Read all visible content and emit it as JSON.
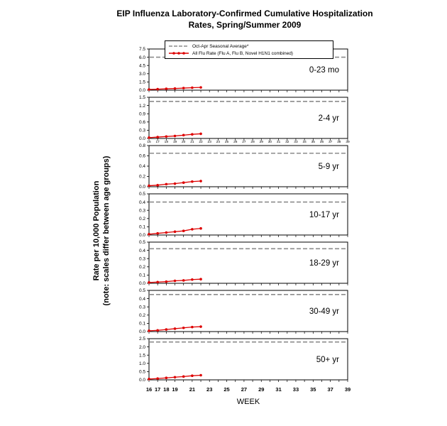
{
  "header": {
    "line1": "EIP Influenza Laboratory-Confirmed Cumulative Hospitalization",
    "line2": "Rates, Spring/Summer 2009"
  },
  "y_axis": {
    "label_line1": "Rate per 10,000 Population",
    "label_line2": "(note: scales differ between age groups)"
  },
  "x_axis": {
    "label": "WEEK"
  },
  "legend": {
    "items": [
      {
        "label": "Oct-Apr Seasonal Average*",
        "style": "dashed",
        "color": "#8c8c8c"
      },
      {
        "label": "All Flu Rate (Flu A, Flu B, Novel H1N1 combined)",
        "style": "marker-line",
        "color": "#dd0000"
      }
    ]
  },
  "chart_data": {
    "type": "line",
    "title": "EIP Influenza Laboratory-Confirmed Cumulative Hospitalization Rates, Spring/Summer 2009",
    "xlabel": "WEEK",
    "ylabel": "Rate per 10,000 Population (note: scales differ between age groups)",
    "x_weeks": [
      16,
      17,
      18,
      19,
      20,
      21,
      22,
      23,
      24,
      25,
      26,
      27,
      28,
      29,
      30,
      31,
      32,
      33,
      34,
      35,
      36,
      37,
      38,
      39
    ],
    "bottom_tick_labels": [
      16,
      17,
      18,
      19,
      21,
      23,
      25,
      27,
      29,
      31,
      33,
      35,
      37,
      39
    ],
    "grid": false,
    "legend_position": "top",
    "panels": [
      {
        "age_group": "0-23 mo",
        "ymax": 7.5,
        "yticks": [
          0.0,
          1.5,
          3.0,
          4.5,
          6.0,
          7.5
        ],
        "seasonal_average": 6.0,
        "dense_x_labels": false,
        "flu_weeks": [
          16,
          17,
          18,
          19,
          20,
          21,
          22
        ],
        "flu_values": [
          0.13,
          0.18,
          0.25,
          0.3,
          0.38,
          0.45,
          0.5
        ]
      },
      {
        "age_group": "2-4 yr",
        "ymax": 1.5,
        "yticks": [
          0.0,
          0.3,
          0.6,
          0.9,
          1.2,
          1.5
        ],
        "seasonal_average": 1.35,
        "dense_x_labels": true,
        "flu_weeks": [
          16,
          17,
          18,
          19,
          20,
          21,
          22
        ],
        "flu_values": [
          0.03,
          0.05,
          0.07,
          0.09,
          0.12,
          0.15,
          0.17
        ]
      },
      {
        "age_group": "5-9 yr",
        "ymax": 0.8,
        "yticks": [
          0.0,
          0.2,
          0.4,
          0.6,
          0.8
        ],
        "seasonal_average": 0.65,
        "dense_x_labels": false,
        "flu_weeks": [
          16,
          17,
          18,
          19,
          20,
          21,
          22
        ],
        "flu_values": [
          0.02,
          0.03,
          0.05,
          0.06,
          0.08,
          0.1,
          0.11
        ]
      },
      {
        "age_group": "10-17 yr",
        "ymax": 0.5,
        "yticks": [
          0.0,
          0.1,
          0.2,
          0.3,
          0.4,
          0.5
        ],
        "seasonal_average": 0.4,
        "dense_x_labels": false,
        "flu_weeks": [
          16,
          17,
          18,
          19,
          20,
          21,
          22
        ],
        "flu_values": [
          0.01,
          0.02,
          0.03,
          0.04,
          0.05,
          0.07,
          0.08
        ]
      },
      {
        "age_group": "18-29 yr",
        "ymax": 0.5,
        "yticks": [
          0.0,
          0.1,
          0.2,
          0.3,
          0.4,
          0.5
        ],
        "seasonal_average": 0.42,
        "dense_x_labels": false,
        "flu_weeks": [
          16,
          17,
          18,
          19,
          20,
          21,
          22
        ],
        "flu_values": [
          0.01,
          0.015,
          0.02,
          0.03,
          0.035,
          0.045,
          0.05
        ]
      },
      {
        "age_group": "30-49 yr",
        "ymax": 0.5,
        "yticks": [
          0.0,
          0.1,
          0.2,
          0.3,
          0.4,
          0.5
        ],
        "seasonal_average": 0.45,
        "dense_x_labels": false,
        "flu_weeks": [
          16,
          17,
          18,
          19,
          20,
          21,
          22
        ],
        "flu_values": [
          0.01,
          0.015,
          0.025,
          0.035,
          0.045,
          0.055,
          0.06
        ]
      },
      {
        "age_group": "50+ yr",
        "ymax": 2.5,
        "yticks": [
          0.0,
          0.5,
          1.0,
          1.5,
          2.0,
          2.5
        ],
        "seasonal_average": 2.3,
        "dense_x_labels": false,
        "flu_weeks": [
          16,
          17,
          18,
          19,
          20,
          21,
          22
        ],
        "flu_values": [
          0.05,
          0.08,
          0.12,
          0.16,
          0.2,
          0.25,
          0.28
        ]
      }
    ]
  }
}
